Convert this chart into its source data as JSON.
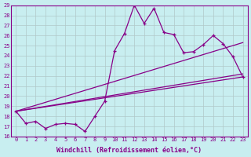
{
  "xlabel": "Windchill (Refroidissement éolien,°C)",
  "background_color": "#c8eef0",
  "line_color": "#880088",
  "grid_color": "#b0c8c8",
  "xlim": [
    -0.5,
    23.5
  ],
  "ylim": [
    16,
    29
  ],
  "xticks": [
    0,
    1,
    2,
    3,
    4,
    5,
    6,
    7,
    8,
    9,
    10,
    11,
    12,
    13,
    14,
    15,
    16,
    17,
    18,
    19,
    20,
    21,
    22,
    23
  ],
  "yticks": [
    16,
    17,
    18,
    19,
    20,
    21,
    22,
    23,
    24,
    25,
    26,
    27,
    28,
    29
  ],
  "series": [
    {
      "x": [
        0,
        1,
        2,
        3,
        4,
        5,
        6,
        7,
        8,
        9,
        10,
        11,
        12,
        13,
        14,
        15,
        16,
        17,
        18,
        19,
        20,
        21,
        22,
        23
      ],
      "y": [
        18.5,
        17.3,
        17.5,
        16.8,
        17.2,
        17.3,
        17.2,
        16.5,
        18.0,
        19.5,
        24.5,
        26.2,
        29.0,
        27.2,
        28.7,
        26.3,
        26.1,
        24.3,
        24.4,
        25.1,
        26.0,
        25.2,
        23.9,
        21.9
      ],
      "has_markers": true
    },
    {
      "x": [
        0,
        23
      ],
      "y": [
        18.5,
        21.9
      ],
      "has_markers": false
    },
    {
      "x": [
        0,
        23
      ],
      "y": [
        18.5,
        22.2
      ],
      "has_markers": false
    },
    {
      "x": [
        0,
        23
      ],
      "y": [
        18.5,
        25.3
      ],
      "has_markers": false
    }
  ],
  "marker": "+",
  "markersize": 3,
  "linewidth": 0.9,
  "tick_fontsize": 5,
  "xlabel_fontsize": 6
}
